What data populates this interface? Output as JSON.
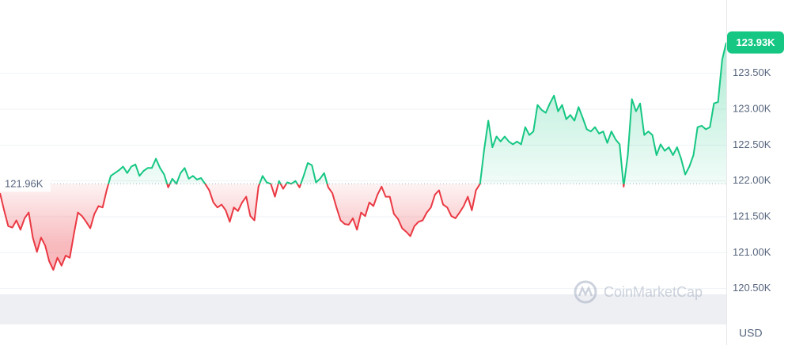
{
  "chart_data": {
    "type": "line",
    "values": [
      121.83,
      121.59,
      121.37,
      121.35,
      121.45,
      121.32,
      121.48,
      121.56,
      121.21,
      121.01,
      121.21,
      121.1,
      120.88,
      120.76,
      120.93,
      120.82,
      120.96,
      120.93,
      121.26,
      121.56,
      121.51,
      121.43,
      121.34,
      121.54,
      121.65,
      121.63,
      121.87,
      122.07,
      122.11,
      122.15,
      122.2,
      122.11,
      122.2,
      122.23,
      122.07,
      122.14,
      122.18,
      122.18,
      122.31,
      122.18,
      122.09,
      121.91,
      122.03,
      121.96,
      122.11,
      122.18,
      122.03,
      122.07,
      122.02,
      122.04,
      121.96,
      121.87,
      121.7,
      121.63,
      121.67,
      121.59,
      121.43,
      121.63,
      121.58,
      121.7,
      121.78,
      121.51,
      121.45,
      121.92,
      122.07,
      121.98,
      121.96,
      121.78,
      122.0,
      121.89,
      121.98,
      121.96,
      122.0,
      121.91,
      122.07,
      122.25,
      122.22,
      121.98,
      122.03,
      122.11,
      121.91,
      121.83,
      121.63,
      121.45,
      121.4,
      121.39,
      121.48,
      121.32,
      121.56,
      121.51,
      121.7,
      121.65,
      121.81,
      121.92,
      121.78,
      121.78,
      121.54,
      121.47,
      121.34,
      121.29,
      121.23,
      121.37,
      121.43,
      121.45,
      121.56,
      121.63,
      121.81,
      121.87,
      121.67,
      121.63,
      121.51,
      121.48,
      121.56,
      121.65,
      121.78,
      121.59,
      121.87,
      121.96,
      122.44,
      122.84,
      122.47,
      122.62,
      122.55,
      122.62,
      122.55,
      122.51,
      122.55,
      122.51,
      122.75,
      122.64,
      122.69,
      123.06,
      122.99,
      122.95,
      123.08,
      123.19,
      122.97,
      123.06,
      122.86,
      122.92,
      122.84,
      123.03,
      122.88,
      122.72,
      122.69,
      122.75,
      122.66,
      122.69,
      122.53,
      122.69,
      122.58,
      122.51,
      121.92,
      122.36,
      123.14,
      122.97,
      123.08,
      122.64,
      122.69,
      122.64,
      122.36,
      122.51,
      122.42,
      122.47,
      122.36,
      122.47,
      122.31,
      122.09,
      122.2,
      122.36,
      122.75,
      122.77,
      122.72,
      122.75,
      123.08,
      123.1,
      123.69,
      123.93
    ],
    "ylim": [
      120,
      124.5
    ],
    "yticks": [
      {
        "value": 120.5,
        "label": "120.50K"
      },
      {
        "value": 121,
        "label": "121.00K"
      },
      {
        "value": 121.5,
        "label": "121.50K"
      },
      {
        "value": 122,
        "label": "122.00K"
      },
      {
        "value": 122.5,
        "label": "122.50K"
      },
      {
        "value": 123,
        "label": "123.00K"
      },
      {
        "value": 123.5,
        "label": "123.50K"
      }
    ],
    "grid": true,
    "baseline": {
      "value": 121.96,
      "label": "121.96K"
    },
    "last_price": {
      "value": 123.93,
      "label": "123.93K"
    },
    "up_color": "#16c784",
    "down_color": "#ea3943",
    "currency": "USD",
    "watermark": "CoinMarketCap"
  }
}
